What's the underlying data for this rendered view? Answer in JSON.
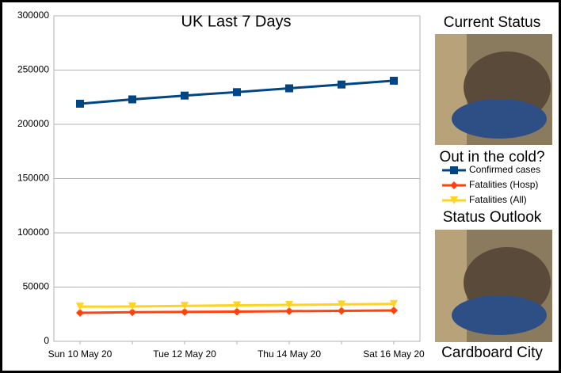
{
  "chart_data": {
    "type": "line",
    "title": "UK Last 7 Days",
    "categories": [
      "Sun 10 May 20",
      null,
      "Tue 12 May 20",
      null,
      "Thu 14 May 20",
      null,
      "Sat 16 May 20"
    ],
    "series": [
      {
        "name": "Confirmed cases",
        "color": "#004586",
        "marker": "square",
        "values": [
          219000,
          223000,
          226500,
          229700,
          233200,
          236700,
          240200
        ]
      },
      {
        "name": "Fatalities (Hosp)",
        "color": "#ff420e",
        "marker": "diamond",
        "values": [
          26300,
          26800,
          27100,
          27400,
          27800,
          28100,
          28500
        ]
      },
      {
        "name": "Fatalities (All)",
        "color": "#ffd320",
        "marker": "triangle-down",
        "values": [
          31900,
          32100,
          32700,
          33200,
          33600,
          34000,
          34500
        ]
      }
    ],
    "ylim": [
      0,
      300000
    ],
    "yticks": [
      0,
      50000,
      100000,
      150000,
      200000,
      250000,
      300000
    ],
    "grid": true,
    "annotations": [
      "Current Status",
      "Out in the cold?",
      "Status Outlook",
      "Cardboard City"
    ]
  }
}
